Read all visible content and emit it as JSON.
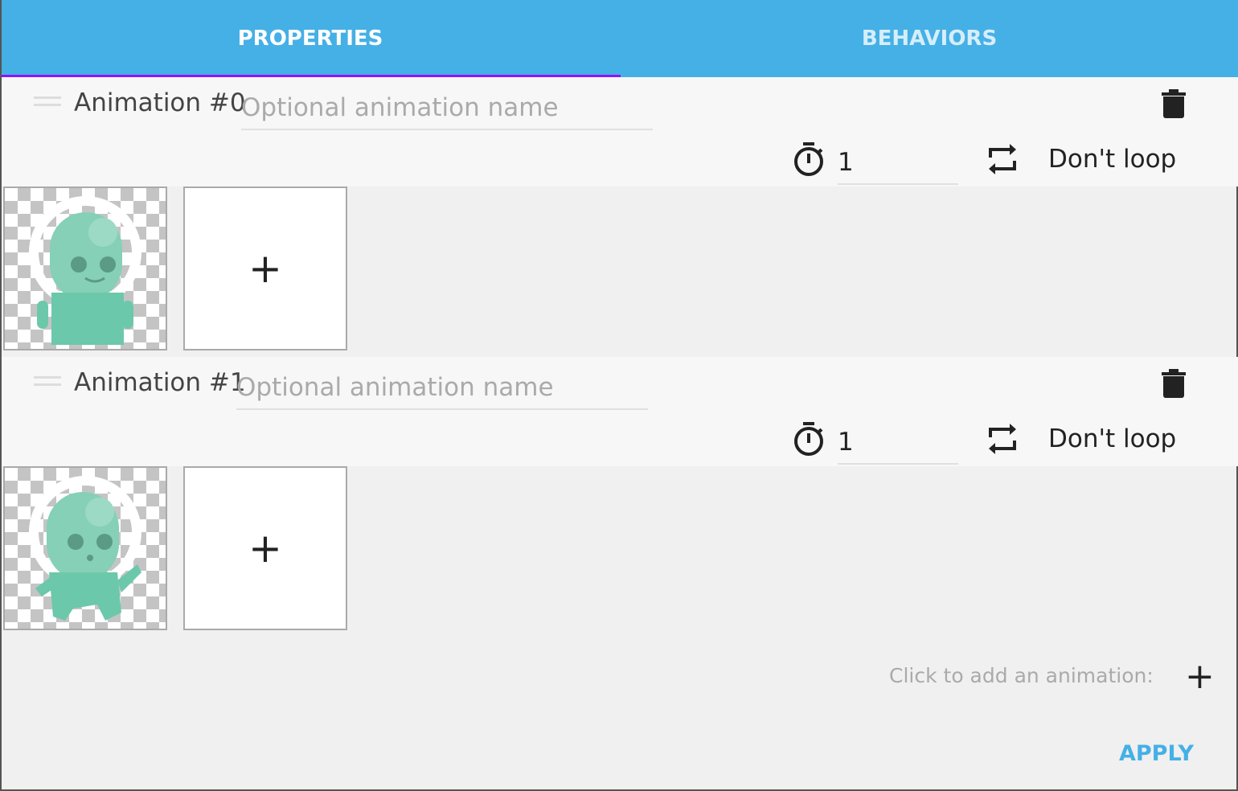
{
  "tabs": [
    {
      "label": "PROPERTIES",
      "active": true
    },
    {
      "label": "BEHAVIORS",
      "active": false
    }
  ],
  "animations": [
    {
      "label": "Animation #0",
      "name_value": "",
      "name_placeholder": "Optional animation name",
      "duration": "1",
      "loop_label": "Don't loop"
    },
    {
      "label": "Animation #1",
      "name_value": "",
      "name_placeholder": "Optional animation name",
      "duration": "1",
      "loop_label": "Don't loop"
    }
  ],
  "add_frame_label": "+",
  "footer": {
    "add_hint": "Click to add an animation:",
    "add_label": "+",
    "apply_label": "APPLY"
  },
  "colors": {
    "accent": "#45b0e6",
    "tab_indicator": "#9013fe",
    "sprite": "#6cc8aa"
  }
}
